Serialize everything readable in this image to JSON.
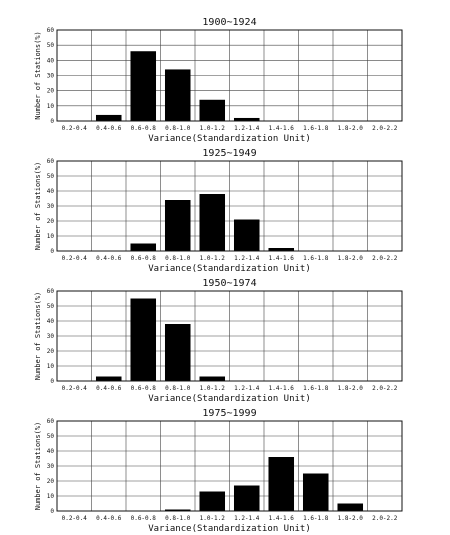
{
  "chart_data": [
    {
      "type": "bar",
      "title": "1900~1924",
      "xlabel": "Variance(Standardization Unit)",
      "ylabel": "Number of Stations(%)",
      "categories": [
        "0.2-0.4",
        "0.4-0.6",
        "0.6-0.8",
        "0.8-1.0",
        "1.0-1.2",
        "1.2-1.4",
        "1.4-1.6",
        "1.6-1.8",
        "1.8-2.0",
        "2.0-2.2"
      ],
      "values": [
        0,
        4,
        46,
        34,
        14,
        2,
        0,
        0,
        0,
        0
      ],
      "yticks": [
        0,
        10,
        20,
        30,
        40,
        50,
        60
      ],
      "ylim": [
        0,
        60
      ],
      "grid": true
    },
    {
      "type": "bar",
      "title": "1925~1949",
      "xlabel": "Variance(Standardization Unit)",
      "ylabel": "Number of Stations(%)",
      "categories": [
        "0.2-0.4",
        "0.4-0.6",
        "0.6-0.8",
        "0.8-1.0",
        "1.0-1.2",
        "1.2-1.4",
        "1.4-1.6",
        "1.6-1.8",
        "1.8-2.0",
        "2.0-2.2"
      ],
      "values": [
        0,
        0,
        5,
        34,
        38,
        21,
        2,
        0,
        0,
        0
      ],
      "yticks": [
        0,
        10,
        20,
        30,
        40,
        50,
        60
      ],
      "ylim": [
        0,
        60
      ],
      "grid": true
    },
    {
      "type": "bar",
      "title": "1950~1974",
      "xlabel": "Variance(Standardization Unit)",
      "ylabel": "Number of Stations(%)",
      "categories": [
        "0.2-0.4",
        "0.4-0.6",
        "0.6-0.8",
        "0.8-1.0",
        "1.0-1.2",
        "1.2-1.4",
        "1.4-1.6",
        "1.6-1.8",
        "1.8-2.0",
        "2.0-2.2"
      ],
      "values": [
        0,
        3,
        55,
        38,
        3,
        0,
        0,
        0,
        0,
        0
      ],
      "yticks": [
        0,
        10,
        20,
        30,
        40,
        50,
        60
      ],
      "ylim": [
        0,
        60
      ],
      "grid": true
    },
    {
      "type": "bar",
      "title": "1975~1999",
      "xlabel": "Variance(Standardization Unit)",
      "ylabel": "Number of Stations(%)",
      "categories": [
        "0.2-0.4",
        "0.4-0.6",
        "0.6-0.8",
        "0.8-1.0",
        "1.0-1.2",
        "1.2-1.4",
        "1.4-1.6",
        "1.6-1.8",
        "1.8-2.0",
        "2.0-2.2"
      ],
      "values": [
        0,
        0,
        0,
        1,
        13,
        17,
        36,
        25,
        5,
        0
      ],
      "yticks": [
        0,
        10,
        20,
        30,
        40,
        50,
        60
      ],
      "ylim": [
        0,
        60
      ],
      "grid": true
    }
  ],
  "colors": {
    "bar": "#000000",
    "grid": "#444444",
    "axis": "#111111"
  }
}
